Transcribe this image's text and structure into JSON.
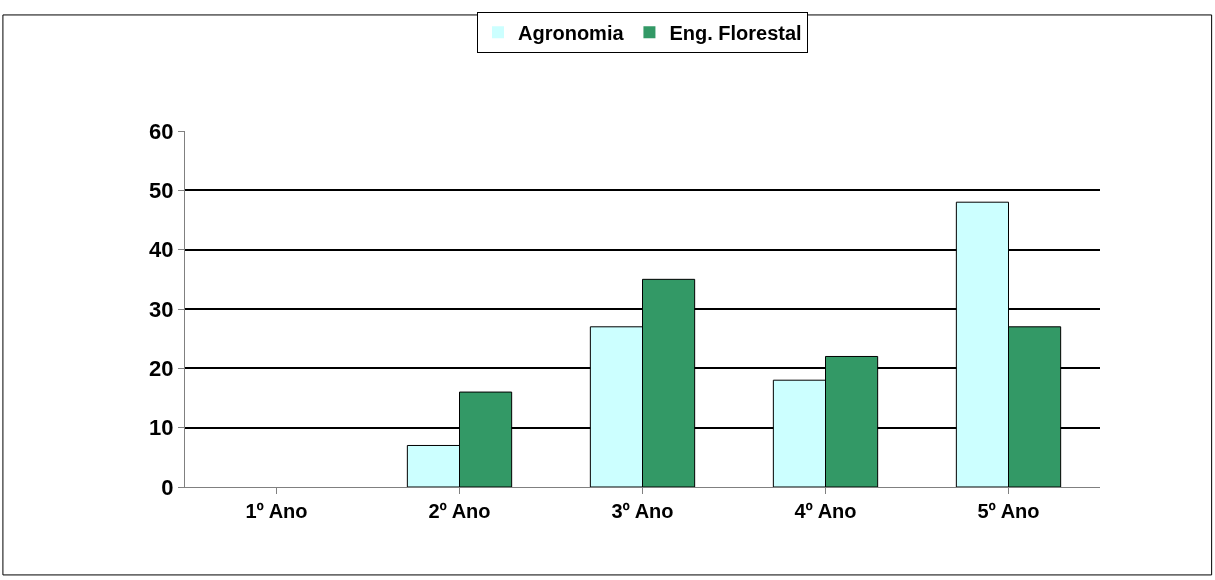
{
  "chart_data": {
    "type": "bar",
    "categories": [
      "1º Ano",
      "2º Ano",
      "3º Ano",
      "4º Ano",
      "5º Ano"
    ],
    "series": [
      {
        "name": "Agronomia",
        "color": "#ccffff",
        "values": [
          0,
          7,
          27,
          18,
          48
        ]
      },
      {
        "name": "Eng. Florestal",
        "color": "#339966",
        "values": [
          0,
          16,
          35,
          22,
          27
        ]
      }
    ],
    "ylim": [
      0,
      60
    ],
    "yticks": [
      0,
      10,
      20,
      30,
      40,
      50,
      60
    ],
    "grid": "y",
    "legend": "top"
  }
}
